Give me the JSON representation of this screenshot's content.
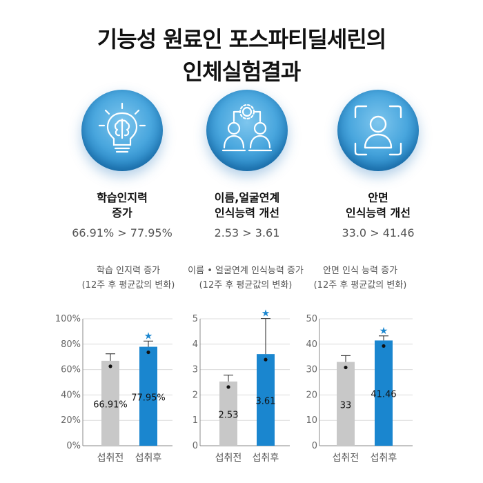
{
  "title_line1": "기능성 원료인 포스파티딜세린의",
  "title_line2": "인체실험결과",
  "features": [
    {
      "icon": "lightbulb-brain-icon",
      "title1": "학습인지력",
      "title2": "증가",
      "value": "66.91% > 77.95%"
    },
    {
      "icon": "people-network-icon",
      "title1": "이름,얼굴연계",
      "title2": "인식능력 개선",
      "value": "2.53 > 3.61"
    },
    {
      "icon": "face-scan-icon",
      "title1": "안면",
      "title2": "인식능력 개선",
      "value": "33.0 > 41.46"
    }
  ],
  "colors": {
    "before": "#c8c8c8",
    "after": "#1a86cf",
    "orb": "#4aa7de"
  },
  "chart_data": [
    {
      "type": "bar",
      "title1": "학습 인지력 증가",
      "title2": "(12주 후 평균값의 변화)",
      "categories": [
        "섭취전",
        "섭취후"
      ],
      "values": [
        66.91,
        77.95
      ],
      "value_labels": [
        "66.91%",
        "77.95%"
      ],
      "errors": [
        5.5,
        4.5
      ],
      "significant": [
        false,
        true
      ],
      "star": "★",
      "ylim": [
        0,
        100
      ],
      "yticks": [
        0,
        20,
        40,
        60,
        80,
        100
      ],
      "ytick_labels": [
        "0%",
        "20%",
        "40%",
        "60%",
        "80%",
        "100%"
      ],
      "grid": true
    },
    {
      "type": "bar",
      "title1": "이름 • 얼굴연계 인식능력 증가",
      "title2": "(12주 후 평균값의 변화)",
      "categories": [
        "섭취전",
        "섭취후"
      ],
      "values": [
        2.53,
        3.61
      ],
      "value_labels": [
        "2.53",
        "3.61"
      ],
      "errors": [
        0.25,
        1.4
      ],
      "significant": [
        false,
        true
      ],
      "star": "★",
      "ylim": [
        0,
        5
      ],
      "yticks": [
        0,
        1,
        2,
        3,
        4,
        5
      ],
      "ytick_labels": [
        "0",
        "1",
        "2",
        "3",
        "4",
        "5"
      ],
      "grid": true
    },
    {
      "type": "bar",
      "title1": "안면 인식 능력 증가",
      "title2": "(12주 후 평균값의 변화)",
      "categories": [
        "섭취전",
        "섭취후"
      ],
      "values": [
        33,
        41.46
      ],
      "value_labels": [
        "33",
        "41.46"
      ],
      "errors": [
        2.5,
        1.8
      ],
      "significant": [
        false,
        true
      ],
      "star": "★",
      "ylim": [
        0,
        50
      ],
      "yticks": [
        0,
        10,
        20,
        30,
        40,
        50
      ],
      "ytick_labels": [
        "0",
        "10",
        "20",
        "30",
        "40",
        "50"
      ],
      "grid": true
    }
  ]
}
